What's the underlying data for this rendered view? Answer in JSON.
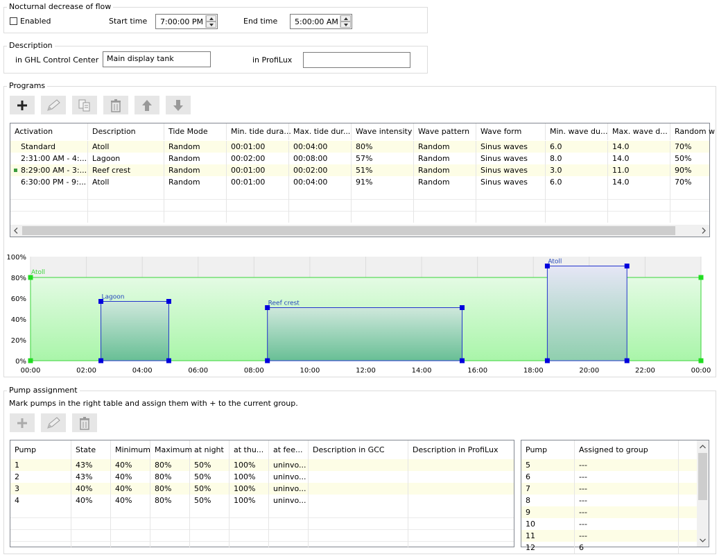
{
  "nocturnal": {
    "title": "Nocturnal decrease of flow",
    "enabled_label": "Enabled",
    "start_label": "Start time",
    "start_value": "7:00:00 PM",
    "end_label": "End time",
    "end_value": "5:00:00 AM"
  },
  "description": {
    "title": "Description",
    "gcc_label": "in GHL Control Center",
    "gcc_value": "Main display tank",
    "profilux_label": "in ProfiLux",
    "profilux_value": ""
  },
  "programs": {
    "title": "Programs",
    "toolbar": [
      "plus-icon",
      "pencil-icon",
      "copy-icon",
      "trash-icon",
      "arrow-up-icon",
      "arrow-down-icon"
    ],
    "columns": [
      "Activation",
      "Description",
      "Tide Mode",
      "Min. tide dura...",
      "Max. tide dur...",
      "Wave intensity",
      "Wave pattern",
      "Wave form",
      "Min. wave du...",
      "Max. wave d...",
      "Random w"
    ],
    "rows": [
      [
        "Standard",
        "Atoll",
        "Random",
        "00:01:00",
        "00:04:00",
        "80%",
        "Random",
        "Sinus waves",
        "6.0",
        "14.0",
        "70%"
      ],
      [
        "2:31:00 AM - 4:...",
        "Lagoon",
        "Random",
        "00:02:00",
        "00:08:00",
        "57%",
        "Random",
        "Sinus waves",
        "8.0",
        "14.0",
        "50%"
      ],
      [
        "8:29:00 AM - 3:...",
        "Reef crest",
        "Random",
        "00:01:00",
        "00:02:00",
        "51%",
        "Random",
        "Sinus waves",
        "3.0",
        "11.0",
        "90%"
      ],
      [
        "6:30:00 PM - 9:...",
        "Atoll",
        "Random",
        "00:01:00",
        "00:04:00",
        "91%",
        "Random",
        "Sinus waves",
        "6.0",
        "14.0",
        "70%"
      ]
    ]
  },
  "chart_data": {
    "type": "area",
    "ylim": [
      0,
      100
    ],
    "xlim": [
      0,
      24
    ],
    "yticks": [
      "0%",
      "20%",
      "40%",
      "60%",
      "80%",
      "100%"
    ],
    "xticks": [
      "00:00",
      "02:00",
      "04:00",
      "06:00",
      "08:00",
      "10:00",
      "12:00",
      "14:00",
      "16:00",
      "18:00",
      "20:00",
      "22:00",
      "00:00"
    ],
    "base": {
      "name": "Atoll",
      "start": 0,
      "end": 24,
      "value": 80
    },
    "blocks": [
      {
        "name": "Lagoon",
        "start": 2.52,
        "end": 4.95,
        "value": 57
      },
      {
        "name": "Reef crest",
        "start": 8.48,
        "end": 15.45,
        "value": 51
      },
      {
        "name": "Atoll",
        "start": 18.5,
        "end": 21.35,
        "value": 91
      }
    ]
  },
  "pumps": {
    "title": "Pump assignment",
    "hint": "Mark pumps in the right table and assign them with + to the current group.",
    "toolbar": [
      "plus-icon",
      "pencil-icon",
      "trash-icon"
    ],
    "columns": [
      "Pump",
      "State",
      "Minimum",
      "Maximum",
      "at night",
      "at thu...",
      "at fee...",
      "Description in GCC",
      "Description in ProfiLux"
    ],
    "rows": [
      [
        "1",
        "43%",
        "40%",
        "80%",
        "50%",
        "100%",
        "uninvo...",
        "",
        ""
      ],
      [
        "2",
        "43%",
        "40%",
        "80%",
        "50%",
        "100%",
        "uninvo...",
        "",
        ""
      ],
      [
        "3",
        "40%",
        "40%",
        "80%",
        "50%",
        "100%",
        "uninvo...",
        "",
        ""
      ],
      [
        "4",
        "40%",
        "40%",
        "80%",
        "50%",
        "100%",
        "uninvo...",
        "",
        ""
      ]
    ],
    "assign_columns": [
      "Pump",
      "Assigned to group"
    ],
    "assign_rows": [
      [
        "5",
        "---"
      ],
      [
        "6",
        "---"
      ],
      [
        "7",
        "---"
      ],
      [
        "8",
        "---"
      ],
      [
        "9",
        "---"
      ],
      [
        "10",
        "---"
      ],
      [
        "11",
        "---"
      ],
      [
        "12",
        "6"
      ]
    ]
  }
}
